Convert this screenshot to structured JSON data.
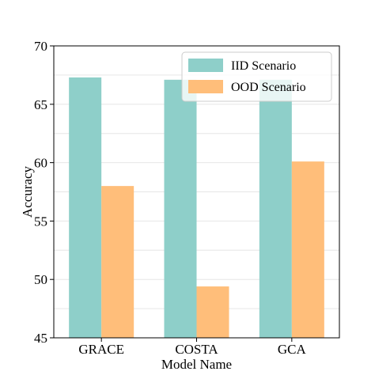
{
  "chart_data": {
    "type": "bar",
    "categories": [
      "GRACE",
      "COSTA",
      "GCA"
    ],
    "series": [
      {
        "name": "IID Scenario",
        "values": [
          67.3,
          67.1,
          67.1
        ],
        "color": "#8ECFC9"
      },
      {
        "name": "OOD Scenario",
        "values": [
          58.0,
          49.4,
          60.1
        ],
        "color": "#FFBE7A"
      }
    ],
    "xlabel": "Model Name",
    "ylabel": "Accuracy",
    "ylim": [
      45,
      70
    ],
    "yticks": [
      "45",
      "50",
      "55",
      "60",
      "65",
      "70"
    ],
    "grid": "horizontal",
    "legend_position": "top-right"
  }
}
